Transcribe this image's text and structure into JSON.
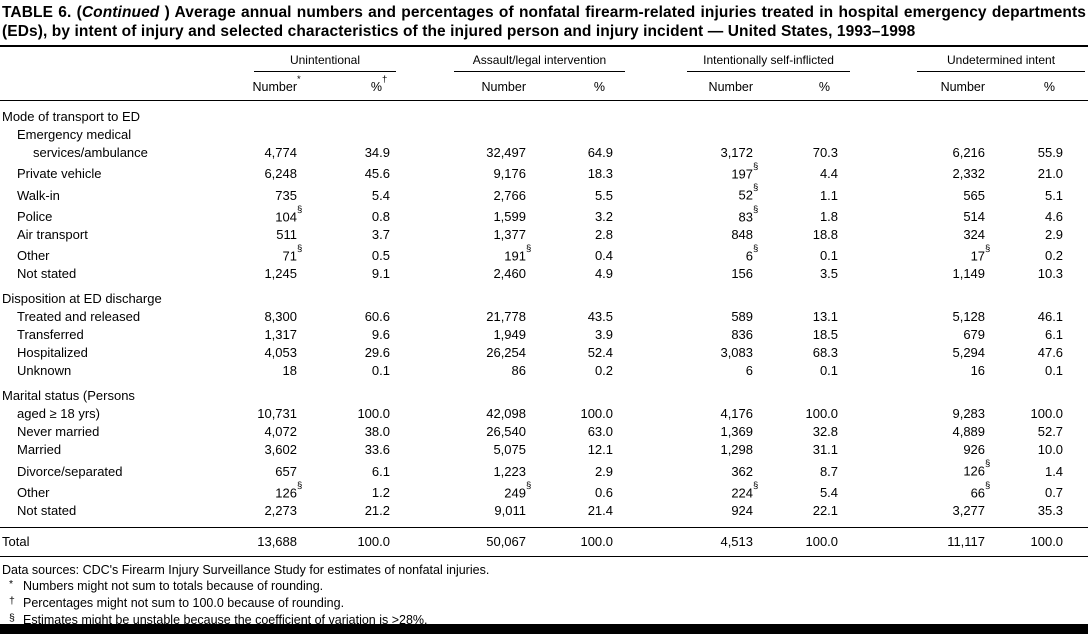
{
  "title": {
    "part1": "TABLE 6. (",
    "part2_italic": "Continued",
    "part3": " ) Average annual numbers and percentages of nonfatal firearm-related injuries treated in hospital emergency departments (EDs), by intent of injury and selected characteristics of the injured person and injury incident — United States, 1993–1998"
  },
  "table": {
    "column_groups": [
      {
        "label": "Unintentional",
        "subheaders": [
          "Number*",
          "%†"
        ]
      },
      {
        "label": "Assault/legal intervention",
        "subheaders": [
          "Number",
          "%"
        ]
      },
      {
        "label": "Intentionally self-inflicted",
        "subheaders": [
          "Number",
          "%"
        ]
      },
      {
        "label": "Undetermined intent",
        "subheaders": [
          "Number",
          "%"
        ]
      }
    ],
    "sections": [
      {
        "heading": "Mode of transport to ED",
        "rows": [
          {
            "label_lines": [
              "Emergency medical",
              "services/ambulance"
            ],
            "values": [
              "4,774",
              "34.9",
              "32,497",
              "64.9",
              "3,172",
              "70.3",
              "6,216",
              "55.9"
            ]
          },
          {
            "label": "Private vehicle",
            "values": [
              "6,248",
              "45.6",
              "9,176",
              "18.3",
              "197§",
              "4.4",
              "2,332",
              "21.0"
            ]
          },
          {
            "label": "Walk-in",
            "values": [
              "735",
              "5.4",
              "2,766",
              "5.5",
              "52§",
              "1.1",
              "565",
              "5.1"
            ]
          },
          {
            "label": "Police",
            "values": [
              "104§",
              "0.8",
              "1,599",
              "3.2",
              "83§",
              "1.8",
              "514",
              "4.6"
            ]
          },
          {
            "label": "Air transport",
            "values": [
              "511",
              "3.7",
              "1,377",
              "2.8",
              "848",
              "18.8",
              "324",
              "2.9"
            ]
          },
          {
            "label": "Other",
            "values": [
              "71§",
              "0.5",
              "191§",
              "0.4",
              "6§",
              "0.1",
              "17§",
              "0.2"
            ]
          },
          {
            "label": "Not stated",
            "values": [
              "1,245",
              "9.1",
              "2,460",
              "4.9",
              "156",
              "3.5",
              "1,149",
              "10.3"
            ]
          }
        ]
      },
      {
        "heading": "Disposition at ED discharge",
        "rows": [
          {
            "label": "Treated and released",
            "values": [
              "8,300",
              "60.6",
              "21,778",
              "43.5",
              "589",
              "13.1",
              "5,128",
              "46.1"
            ]
          },
          {
            "label": "Transferred",
            "values": [
              "1,317",
              "9.6",
              "1,949",
              "3.9",
              "836",
              "18.5",
              "679",
              "6.1"
            ]
          },
          {
            "label": "Hospitalized",
            "values": [
              "4,053",
              "29.6",
              "26,254",
              "52.4",
              "3,083",
              "68.3",
              "5,294",
              "47.6"
            ]
          },
          {
            "label": "Unknown",
            "values": [
              "18",
              "0.1",
              "86",
              "0.2",
              "6",
              "0.1",
              "16",
              "0.1"
            ]
          }
        ]
      },
      {
        "heading": "Marital status (Persons",
        "rows": [
          {
            "label": "aged ≥ 18 yrs)",
            "values": [
              "10,731",
              "100.0",
              "42,098",
              "100.0",
              "4,176",
              "100.0",
              "9,283",
              "100.0"
            ]
          },
          {
            "label": "Never married",
            "values": [
              "4,072",
              "38.0",
              "26,540",
              "63.0",
              "1,369",
              "32.8",
              "4,889",
              "52.7"
            ]
          },
          {
            "label": "Married",
            "values": [
              "3,602",
              "33.6",
              "5,075",
              "12.1",
              "1,298",
              "31.1",
              "926",
              "10.0"
            ]
          },
          {
            "label": "Divorce/separated",
            "values": [
              "657",
              "6.1",
              "1,223",
              "2.9",
              "362",
              "8.7",
              "126§",
              "1.4"
            ]
          },
          {
            "label": "Other",
            "values": [
              "126§",
              "1.2",
              "249§",
              "0.6",
              "224§",
              "5.4",
              "66§",
              "0.7"
            ]
          },
          {
            "label": "Not stated",
            "values": [
              "2,273",
              "21.2",
              "9,011",
              "21.4",
              "924",
              "22.1",
              "3,277",
              "35.3"
            ]
          }
        ]
      }
    ],
    "total": {
      "label": "Total",
      "values": [
        "13,688",
        "100.0",
        "50,067",
        "100.0",
        "4,513",
        "100.0",
        "11,117",
        "100.0"
      ]
    }
  },
  "footnotes": [
    {
      "marker": "",
      "text": "Data sources: CDC's Firearm Injury Surveillance Study for estimates of nonfatal injuries."
    },
    {
      "marker": "*",
      "text": "Numbers might not sum to totals because of rounding."
    },
    {
      "marker": "†",
      "text": "Percentages might not sum to 100.0 because of rounding."
    },
    {
      "marker": "§",
      "text": "Estimates might be unstable because the coefficient of variation is >28%."
    }
  ]
}
